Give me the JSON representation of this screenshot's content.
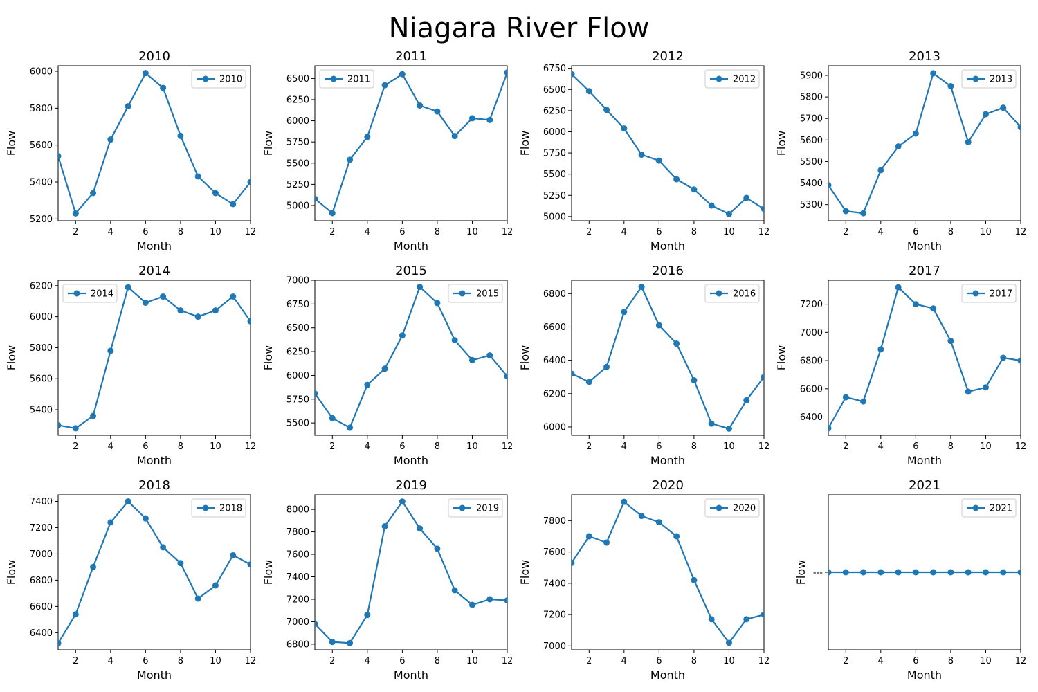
{
  "figure": {
    "title": "Niagara River Flow"
  },
  "style": {
    "line_color": "#1f77b4",
    "background": "#ffffff"
  },
  "chart_data": [
    {
      "type": "line",
      "title": "2010",
      "xlabel": "Month",
      "ylabel": "Flow",
      "xlim": [
        1,
        12
      ],
      "xticks": [
        2,
        4,
        6,
        8,
        10,
        12
      ],
      "ylim": [
        5190,
        6030
      ],
      "yticks": [
        5200,
        5400,
        5600,
        5800,
        6000
      ],
      "legend": "upper right",
      "series": [
        {
          "name": "2010",
          "x": [
            1,
            2,
            3,
            4,
            5,
            6,
            7,
            8,
            9,
            10,
            11,
            12
          ],
          "values": [
            5540,
            5230,
            5340,
            5630,
            5810,
            5990,
            5910,
            5650,
            5430,
            5340,
            5280,
            5400
          ]
        }
      ]
    },
    {
      "type": "line",
      "title": "2011",
      "xlabel": "Month",
      "ylabel": "Flow",
      "xlim": [
        1,
        12
      ],
      "xticks": [
        2,
        4,
        6,
        8,
        10,
        12
      ],
      "ylim": [
        4820,
        6650
      ],
      "yticks": [
        5000,
        5250,
        5500,
        5750,
        6000,
        6250,
        6500
      ],
      "legend": "upper left",
      "series": [
        {
          "name": "2011",
          "x": [
            1,
            2,
            3,
            4,
            5,
            6,
            7,
            8,
            9,
            10,
            11,
            12
          ],
          "values": [
            5080,
            4910,
            5540,
            5810,
            6420,
            6550,
            6180,
            6110,
            5820,
            6030,
            6010,
            6570
          ]
        }
      ]
    },
    {
      "type": "line",
      "title": "2012",
      "xlabel": "Month",
      "ylabel": "Flow",
      "xlim": [
        1,
        12
      ],
      "xticks": [
        2,
        4,
        6,
        8,
        10,
        12
      ],
      "ylim": [
        4950,
        6780
      ],
      "yticks": [
        5000,
        5250,
        5500,
        5750,
        6000,
        6250,
        6500,
        6750
      ],
      "legend": "upper right",
      "series": [
        {
          "name": "2012",
          "x": [
            1,
            2,
            3,
            4,
            5,
            6,
            7,
            8,
            9,
            10,
            11,
            12
          ],
          "values": [
            6680,
            6480,
            6260,
            6040,
            5730,
            5660,
            5440,
            5320,
            5130,
            5030,
            5220,
            5090
          ]
        }
      ]
    },
    {
      "type": "line",
      "title": "2013",
      "xlabel": "Month",
      "ylabel": "Flow",
      "xlim": [
        1,
        12
      ],
      "xticks": [
        2,
        4,
        6,
        8,
        10,
        12
      ],
      "ylim": [
        5225,
        5945
      ],
      "yticks": [
        5300,
        5400,
        5500,
        5600,
        5700,
        5800,
        5900
      ],
      "legend": "upper right",
      "series": [
        {
          "name": "2013",
          "x": [
            1,
            2,
            3,
            4,
            5,
            6,
            7,
            8,
            9,
            10,
            11,
            12
          ],
          "values": [
            5390,
            5270,
            5260,
            5460,
            5570,
            5630,
            5910,
            5850,
            5590,
            5720,
            5750,
            5660
          ]
        }
      ]
    },
    {
      "type": "line",
      "title": "2014",
      "xlabel": "Month",
      "ylabel": "Flow",
      "xlim": [
        1,
        12
      ],
      "xticks": [
        2,
        4,
        6,
        8,
        10,
        12
      ],
      "ylim": [
        5235,
        6235
      ],
      "yticks": [
        5400,
        5600,
        5800,
        6000,
        6200
      ],
      "legend": "upper left",
      "series": [
        {
          "name": "2014",
          "x": [
            1,
            2,
            3,
            4,
            5,
            6,
            7,
            8,
            9,
            10,
            11,
            12
          ],
          "values": [
            5300,
            5280,
            5360,
            5780,
            6190,
            6090,
            6130,
            6040,
            6000,
            6040,
            6130,
            5970
          ]
        }
      ]
    },
    {
      "type": "line",
      "title": "2015",
      "xlabel": "Month",
      "ylabel": "Flow",
      "xlim": [
        1,
        12
      ],
      "xticks": [
        2,
        4,
        6,
        8,
        10,
        12
      ],
      "ylim": [
        5370,
        7000
      ],
      "yticks": [
        5500,
        5750,
        6000,
        6250,
        6500,
        6750,
        7000
      ],
      "legend": "upper right",
      "series": [
        {
          "name": "2015",
          "x": [
            1,
            2,
            3,
            4,
            5,
            6,
            7,
            8,
            9,
            10,
            11,
            12
          ],
          "values": [
            5810,
            5550,
            5450,
            5900,
            6070,
            6420,
            6930,
            6760,
            6370,
            6160,
            6210,
            5990
          ]
        }
      ]
    },
    {
      "type": "line",
      "title": "2016",
      "xlabel": "Month",
      "ylabel": "Flow",
      "xlim": [
        1,
        12
      ],
      "xticks": [
        2,
        4,
        6,
        8,
        10,
        12
      ],
      "ylim": [
        5950,
        6880
      ],
      "yticks": [
        6000,
        6200,
        6400,
        6600,
        6800
      ],
      "legend": "upper right",
      "series": [
        {
          "name": "2016",
          "x": [
            1,
            2,
            3,
            4,
            5,
            6,
            7,
            8,
            9,
            10,
            11,
            12
          ],
          "values": [
            6320,
            6270,
            6360,
            6690,
            6840,
            6610,
            6500,
            6280,
            6020,
            5990,
            6160,
            6300
          ]
        }
      ]
    },
    {
      "type": "line",
      "title": "2017",
      "xlabel": "Month",
      "ylabel": "Flow",
      "xlim": [
        1,
        12
      ],
      "xticks": [
        2,
        4,
        6,
        8,
        10,
        12
      ],
      "ylim": [
        6270,
        7370
      ],
      "yticks": [
        6400,
        6600,
        6800,
        7000,
        7200
      ],
      "legend": "upper right",
      "series": [
        {
          "name": "2017",
          "x": [
            1,
            2,
            3,
            4,
            5,
            6,
            7,
            8,
            9,
            10,
            11,
            12
          ],
          "values": [
            6320,
            6540,
            6510,
            6880,
            7320,
            7200,
            7170,
            6940,
            6580,
            6610,
            6820,
            6800
          ]
        }
      ]
    },
    {
      "type": "line",
      "title": "2018",
      "xlabel": "Month",
      "ylabel": "Flow",
      "xlim": [
        1,
        12
      ],
      "xticks": [
        2,
        4,
        6,
        8,
        10,
        12
      ],
      "ylim": [
        6270,
        7450
      ],
      "yticks": [
        6400,
        6600,
        6800,
        7000,
        7200,
        7400
      ],
      "legend": "upper right",
      "series": [
        {
          "name": "2018",
          "x": [
            1,
            2,
            3,
            4,
            5,
            6,
            7,
            8,
            9,
            10,
            11,
            12
          ],
          "values": [
            6320,
            6540,
            6900,
            7240,
            7400,
            7270,
            7050,
            6930,
            6660,
            6760,
            6990,
            6920
          ]
        }
      ]
    },
    {
      "type": "line",
      "title": "2019",
      "xlabel": "Month",
      "ylabel": "Flow",
      "xlim": [
        1,
        12
      ],
      "xticks": [
        2,
        4,
        6,
        8,
        10,
        12
      ],
      "ylim": [
        6750,
        8130
      ],
      "yticks": [
        6800,
        7000,
        7200,
        7400,
        7600,
        7800,
        8000
      ],
      "legend": "upper right",
      "series": [
        {
          "name": "2019",
          "x": [
            1,
            2,
            3,
            4,
            5,
            6,
            7,
            8,
            9,
            10,
            11,
            12
          ],
          "values": [
            6980,
            6820,
            6810,
            7060,
            7850,
            8070,
            7830,
            7650,
            7280,
            7150,
            7200,
            7190
          ]
        }
      ]
    },
    {
      "type": "line",
      "title": "2020",
      "xlabel": "Month",
      "ylabel": "Flow",
      "xlim": [
        1,
        12
      ],
      "xticks": [
        2,
        4,
        6,
        8,
        10,
        12
      ],
      "ylim": [
        6975,
        7965
      ],
      "yticks": [
        7000,
        7200,
        7400,
        7600,
        7800
      ],
      "legend": "upper right",
      "series": [
        {
          "name": "2020",
          "x": [
            1,
            2,
            3,
            4,
            5,
            6,
            7,
            8,
            9,
            10,
            11,
            12
          ],
          "values": [
            7530,
            7700,
            7660,
            7920,
            7830,
            7790,
            7700,
            7420,
            7170,
            7020,
            7170,
            7200
          ]
        }
      ]
    },
    {
      "type": "line",
      "title": "2021",
      "xlabel": "Month",
      "ylabel": "Flow",
      "xlim": [
        1,
        12
      ],
      "xticks": [
        2,
        4,
        6,
        8,
        10,
        12
      ],
      "ylim": [
        -1,
        1
      ],
      "yticks": [
        0
      ],
      "ytick_labels": [
        "---"
      ],
      "legend": "upper right",
      "series": [
        {
          "name": "2021",
          "x": [
            1,
            2,
            3,
            4,
            5,
            6,
            7,
            8,
            9,
            10,
            11,
            12
          ],
          "values": [
            0,
            0,
            0,
            0,
            0,
            0,
            0,
            0,
            0,
            0,
            0,
            0
          ]
        }
      ]
    }
  ]
}
